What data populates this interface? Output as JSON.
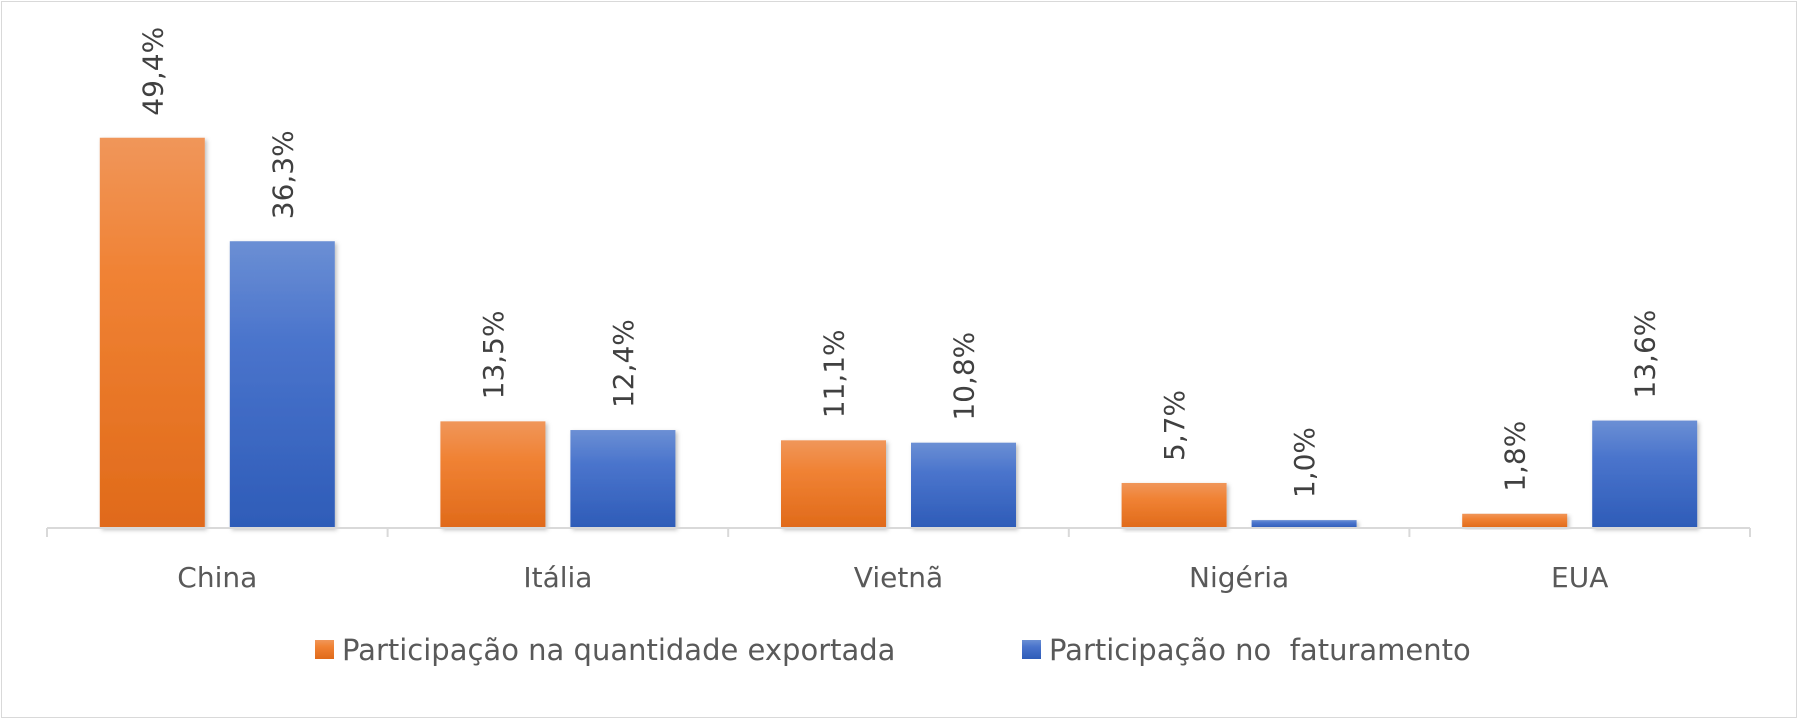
{
  "chart_data": {
    "type": "bar",
    "title": "",
    "xlabel": "",
    "ylabel": "",
    "ylim": [
      0,
      55
    ],
    "grid": false,
    "legend_position": "bottom",
    "categories": [
      "China",
      "Itália",
      "Vietnã",
      "Nigéria",
      "EUA"
    ],
    "series": [
      {
        "name": "Participação na quantidade exportada",
        "color": "#ED7D31",
        "values": [
          49.4,
          13.5,
          11.1,
          5.7,
          1.8
        ],
        "labels": [
          "49,4%",
          "13,5%",
          "11,1%",
          "5,7%",
          "1,8%"
        ]
      },
      {
        "name": "Participação no  faturamento",
        "color": "#4472C4",
        "values": [
          36.3,
          12.4,
          10.8,
          1.0,
          13.6
        ],
        "labels": [
          "36,3%",
          "12,4%",
          "10,8%",
          "1,0%",
          "13,6%"
        ]
      }
    ]
  }
}
